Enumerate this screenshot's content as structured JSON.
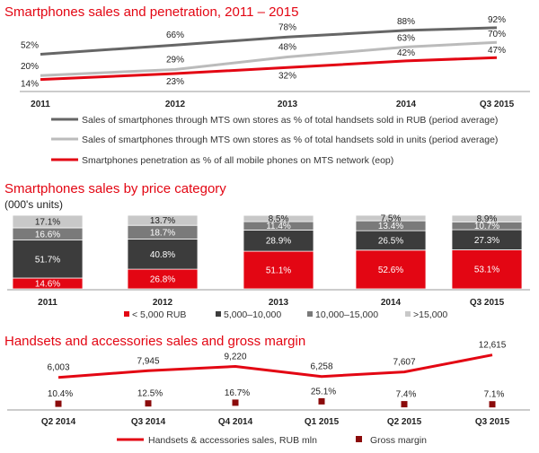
{
  "chart_data": [
    {
      "type": "line",
      "title": "Smartphones sales and penetration, 2011 – 2015",
      "categories": [
        "2011",
        "2012",
        "2013",
        "2014",
        "Q3 2015"
      ],
      "ylim": [
        0,
        100
      ],
      "series": [
        {
          "name": "Sales of smartphones through MTS  own stores as % of total handsets sold in RUB (period average)",
          "values": [
            52,
            66,
            78,
            88,
            92
          ],
          "labels": [
            "52%",
            "66%",
            "78%",
            "88%",
            "92%"
          ],
          "color": "#666666"
        },
        {
          "name": "Sales of smartphones through MTS  own stores as % of total handsets sold in units (period average)",
          "values": [
            20,
            29,
            48,
            63,
            70
          ],
          "labels": [
            "20%",
            "29%",
            "48%",
            "63%",
            "70%"
          ],
          "color": "#bbbbbb"
        },
        {
          "name": "Smartphones penetration as % of all mobile phones on MTS network (eop)",
          "values": [
            14,
            23,
            32,
            42,
            47
          ],
          "labels": [
            "14%",
            "23%",
            "32%",
            "42%",
            "47%"
          ],
          "color": "#e30613"
        }
      ],
      "legend_position": "bottom"
    },
    {
      "type": "bar",
      "stacked": true,
      "title": "Smartphones sales by price category",
      "subtitle": "(000's units)",
      "categories": [
        "2011",
        "2012",
        "2013",
        "2014",
        "Q3 2015"
      ],
      "ylim": [
        0,
        100
      ],
      "series": [
        {
          "name": "< 5,000 RUB",
          "values": [
            14.6,
            26.8,
            51.1,
            52.6,
            53.1
          ],
          "labels": [
            "14.6%",
            "26.8%",
            "51.1%",
            "52.6%",
            "53.1%"
          ],
          "color": "#e30613"
        },
        {
          "name": "5,000–10,000",
          "values": [
            51.7,
            40.8,
            28.9,
            26.5,
            27.3
          ],
          "labels": [
            "51.7%",
            "40.8%",
            "28.9%",
            "26.5%",
            "27.3%"
          ],
          "color": "#3c3c3c"
        },
        {
          "name": "10,000–15,000",
          "values": [
            16.6,
            18.7,
            11.4,
            13.4,
            10.7
          ],
          "labels": [
            "16.6%",
            "18.7%",
            "11.4%",
            "13.4%",
            "10.7%"
          ],
          "color": "#7a7a7a"
        },
        {
          "name": ">15,000",
          "values": [
            17.1,
            13.7,
            8.5,
            7.5,
            8.9
          ],
          "labels": [
            "17.1%",
            "13.7%",
            "8.5%",
            "7.5%",
            "8.9%"
          ],
          "color": "#c8c8c8"
        }
      ],
      "legend_position": "bottom"
    },
    {
      "type": "line",
      "title": "Handsets and accessories sales and gross margin",
      "categories": [
        "Q2 2014",
        "Q3 2014",
        "Q4 2014",
        "Q1 2015",
        "Q2 2015",
        "Q3 2015"
      ],
      "series": [
        {
          "name": "Handsets & accessories sales, RUB mln",
          "values": [
            6003,
            7945,
            9220,
            6258,
            7607,
            12615
          ],
          "labels": [
            "6,003",
            "7,945",
            "9,220",
            "6,258",
            "7,607",
            "12,615"
          ],
          "color": "#e30613"
        },
        {
          "name": "Gross margin",
          "values": [
            10.4,
            12.5,
            16.7,
            25.1,
            7.4,
            7.1
          ],
          "labels": [
            "10.4%",
            "12.5%",
            "16.7%",
            "25.1%",
            "7.4%",
            "7.1%"
          ],
          "color": "#8b0b0b",
          "marker": "square"
        }
      ],
      "legend_position": "bottom"
    }
  ]
}
